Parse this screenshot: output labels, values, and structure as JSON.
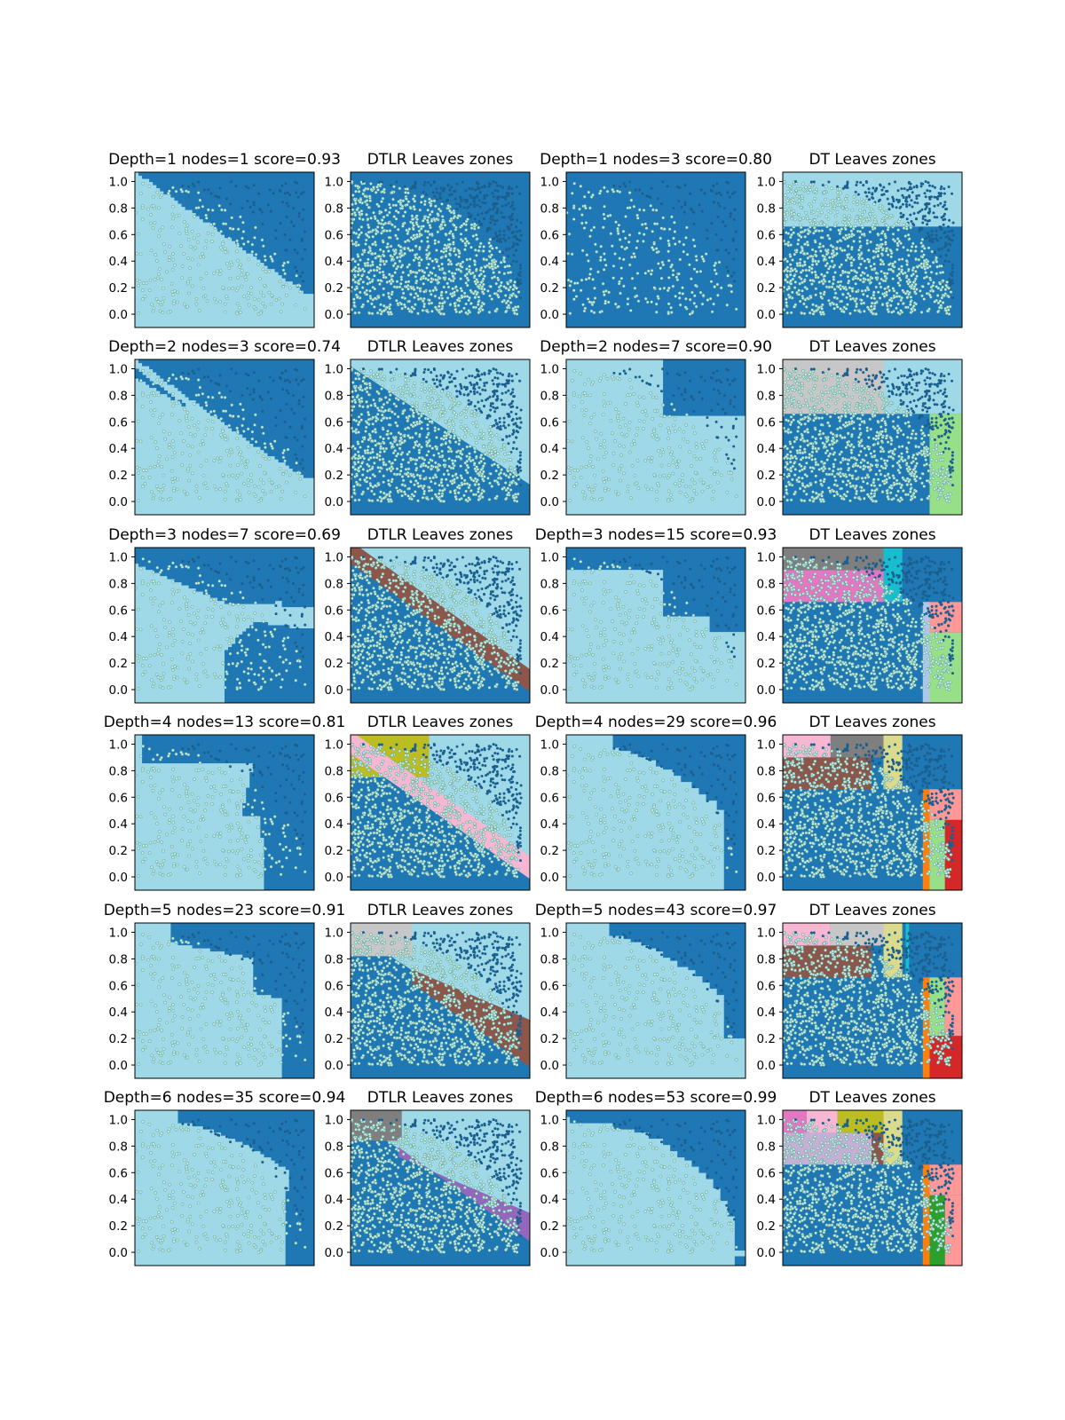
{
  "figure": {
    "rows": 6,
    "cols": 4,
    "xlim": [
      0,
      1.05
    ],
    "ylim": [
      -0.1,
      1.07
    ],
    "y_ticks": [
      0.0,
      0.2,
      0.4,
      0.6,
      0.8,
      1.0
    ],
    "y_tick_labels": [
      "0.0",
      "0.2",
      "0.4",
      "0.6",
      "0.8",
      "1.0"
    ],
    "colors": {
      "class_blue": "#1f77b4",
      "class_light": "#9fd8e6",
      "point_light_fill": "#c5ebd8",
      "point_light_edge": "#3f8a93",
      "point_dark": "#1b5f8f",
      "axis": "#000000"
    }
  },
  "chart_data": [
    {
      "type": "heatmap",
      "title": "Depth=1 nodes=1 score=0.93",
      "depth": 1,
      "nodes": 1,
      "score": 0.93,
      "model": "DTLR",
      "panel": "decision-boundary",
      "show_points": "sample"
    },
    {
      "type": "heatmap",
      "title": "DTLR Leaves zones",
      "depth": 1,
      "model": "DTLR",
      "panel": "leaves-zones",
      "show_points": "full",
      "zones": []
    },
    {
      "type": "heatmap",
      "title": "Depth=1 nodes=3 score=0.80",
      "depth": 1,
      "nodes": 3,
      "score": 0.8,
      "model": "DT",
      "panel": "decision-boundary",
      "show_points": "sample"
    },
    {
      "type": "heatmap",
      "title": "DT Leaves zones",
      "depth": 1,
      "model": "DT",
      "panel": "leaves-zones",
      "show_points": "full",
      "zones": [
        {
          "x": [
            0,
            1.05
          ],
          "y": [
            0.66,
            1.07
          ],
          "color": "#9fd8e6"
        }
      ]
    },
    {
      "type": "heatmap",
      "title": "Depth=2 nodes=3 score=0.74",
      "depth": 2,
      "nodes": 3,
      "score": 0.74,
      "model": "DTLR",
      "panel": "decision-boundary",
      "show_points": "sample"
    },
    {
      "type": "heatmap",
      "title": "DTLR Leaves zones",
      "depth": 2,
      "model": "DTLR",
      "panel": "leaves-zones",
      "show_points": "full",
      "zones": []
    },
    {
      "type": "heatmap",
      "title": "Depth=2 nodes=7 score=0.90",
      "depth": 2,
      "nodes": 7,
      "score": 0.9,
      "model": "DT",
      "panel": "decision-boundary",
      "show_points": "sample"
    },
    {
      "type": "heatmap",
      "title": "DT Leaves zones",
      "depth": 2,
      "model": "DT",
      "panel": "leaves-zones",
      "show_points": "full",
      "zones": [
        {
          "x": [
            0,
            0.59
          ],
          "y": [
            0.66,
            1.07
          ],
          "color": "#c7c7c7"
        },
        {
          "x": [
            0.59,
            1.05
          ],
          "y": [
            0.66,
            1.07
          ],
          "color": "#9fd8e6"
        },
        {
          "x": [
            0.86,
            1.05
          ],
          "y": [
            -0.1,
            0.66
          ],
          "color": "#98df8a"
        }
      ]
    },
    {
      "type": "heatmap",
      "title": "Depth=3 nodes=7 score=0.69",
      "depth": 3,
      "nodes": 7,
      "score": 0.69,
      "model": "DTLR",
      "panel": "decision-boundary",
      "show_points": "sample"
    },
    {
      "type": "heatmap",
      "title": "DTLR Leaves zones",
      "depth": 3,
      "model": "DTLR",
      "panel": "leaves-zones",
      "show_points": "full",
      "zones": []
    },
    {
      "type": "heatmap",
      "title": "Depth=3 nodes=15 score=0.93",
      "depth": 3,
      "nodes": 15,
      "score": 0.93,
      "model": "DT",
      "panel": "decision-boundary",
      "show_points": "sample"
    },
    {
      "type": "heatmap",
      "title": "DT Leaves zones",
      "depth": 3,
      "model": "DT",
      "panel": "leaves-zones",
      "show_points": "full",
      "zones": [
        {
          "x": [
            0,
            0.59
          ],
          "y": [
            0.9,
            1.07
          ],
          "color": "#7f7f7f"
        },
        {
          "x": [
            0,
            0.59
          ],
          "y": [
            0.66,
            0.9
          ],
          "color": "#e377c2"
        },
        {
          "x": [
            0.59,
            0.7
          ],
          "y": [
            0.66,
            1.07
          ],
          "color": "#17becf"
        },
        {
          "x": [
            0.84,
            1.05
          ],
          "y": [
            0.43,
            0.66
          ],
          "color": "#ff9896"
        },
        {
          "x": [
            0.84,
            1.05
          ],
          "y": [
            -0.1,
            0.43
          ],
          "color": "#98df8a"
        },
        {
          "x": [
            0.82,
            0.86
          ],
          "y": [
            -0.1,
            0.66
          ],
          "color": "#aec7e8"
        }
      ]
    },
    {
      "type": "heatmap",
      "title": "Depth=4 nodes=13 score=0.81",
      "depth": 4,
      "nodes": 13,
      "score": 0.81,
      "model": "DTLR",
      "panel": "decision-boundary",
      "show_points": "sample"
    },
    {
      "type": "heatmap",
      "title": "DTLR Leaves zones",
      "depth": 4,
      "model": "DTLR",
      "panel": "leaves-zones",
      "show_points": "full",
      "zones": []
    },
    {
      "type": "heatmap",
      "title": "Depth=4 nodes=29 score=0.96",
      "depth": 4,
      "nodes": 29,
      "score": 0.96,
      "model": "DT",
      "panel": "decision-boundary",
      "show_points": "sample"
    },
    {
      "type": "heatmap",
      "title": "DT Leaves zones",
      "depth": 4,
      "model": "DT",
      "panel": "leaves-zones",
      "show_points": "full",
      "zones": [
        {
          "x": [
            0,
            0.28
          ],
          "y": [
            0.9,
            1.07
          ],
          "color": "#f7b6d2"
        },
        {
          "x": [
            0.28,
            0.59
          ],
          "y": [
            0.9,
            1.07
          ],
          "color": "#7f7f7f"
        },
        {
          "x": [
            0,
            0.52
          ],
          "y": [
            0.66,
            0.9
          ],
          "color": "#8c564b"
        },
        {
          "x": [
            0.59,
            0.7
          ],
          "y": [
            0.66,
            1.07
          ],
          "color": "#dbdb8d"
        },
        {
          "x": [
            0.82,
            0.86
          ],
          "y": [
            -0.1,
            0.66
          ],
          "color": "#ff7f0e"
        },
        {
          "x": [
            0.86,
            0.95
          ],
          "y": [
            -0.1,
            0.43
          ],
          "color": "#98df8a"
        },
        {
          "x": [
            0.95,
            1.05
          ],
          "y": [
            -0.1,
            0.43
          ],
          "color": "#d62728"
        },
        {
          "x": [
            0.86,
            1.05
          ],
          "y": [
            0.43,
            0.66
          ],
          "color": "#ff9896"
        }
      ]
    },
    {
      "type": "heatmap",
      "title": "Depth=5 nodes=23 score=0.91",
      "depth": 5,
      "nodes": 23,
      "score": 0.91,
      "model": "DTLR",
      "panel": "decision-boundary",
      "show_points": "sample"
    },
    {
      "type": "heatmap",
      "title": "DTLR Leaves zones",
      "depth": 5,
      "model": "DTLR",
      "panel": "leaves-zones",
      "show_points": "full",
      "zones": []
    },
    {
      "type": "heatmap",
      "title": "Depth=5 nodes=43 score=0.97",
      "depth": 5,
      "nodes": 43,
      "score": 0.97,
      "model": "DT",
      "panel": "decision-boundary",
      "show_points": "sample"
    },
    {
      "type": "heatmap",
      "title": "DT Leaves zones",
      "depth": 5,
      "model": "DT",
      "panel": "leaves-zones",
      "show_points": "full",
      "zones": [
        {
          "x": [
            0,
            0.28
          ],
          "y": [
            0.9,
            1.07
          ],
          "color": "#f7b6d2"
        },
        {
          "x": [
            0.28,
            0.59
          ],
          "y": [
            0.9,
            1.07
          ],
          "color": "#c7c7c7"
        },
        {
          "x": [
            0,
            0.52
          ],
          "y": [
            0.66,
            0.9
          ],
          "color": "#8c564b"
        },
        {
          "x": [
            0.59,
            0.7
          ],
          "y": [
            0.66,
            1.07
          ],
          "color": "#dbdb8d"
        },
        {
          "x": [
            0.72,
            0.74
          ],
          "y": [
            0.66,
            1.07
          ],
          "color": "#17becf"
        },
        {
          "x": [
            0.82,
            0.86
          ],
          "y": [
            -0.1,
            0.66
          ],
          "color": "#ff7f0e"
        },
        {
          "x": [
            0.86,
            0.95
          ],
          "y": [
            0.22,
            0.66
          ],
          "color": "#98df8a"
        },
        {
          "x": [
            0.86,
            1.05
          ],
          "y": [
            -0.1,
            0.22
          ],
          "color": "#d62728"
        },
        {
          "x": [
            0.95,
            1.05
          ],
          "y": [
            0.22,
            0.66
          ],
          "color": "#ff9896"
        }
      ]
    },
    {
      "type": "heatmap",
      "title": "Depth=6 nodes=35 score=0.94",
      "depth": 6,
      "nodes": 35,
      "score": 0.94,
      "model": "DTLR",
      "panel": "decision-boundary",
      "show_points": "sample"
    },
    {
      "type": "heatmap",
      "title": "DTLR Leaves zones",
      "depth": 6,
      "model": "DTLR",
      "panel": "leaves-zones",
      "show_points": "full",
      "zones": []
    },
    {
      "type": "heatmap",
      "title": "Depth=6 nodes=53 score=0.99",
      "depth": 6,
      "nodes": 53,
      "score": 0.99,
      "model": "DT",
      "panel": "decision-boundary",
      "show_points": "sample"
    },
    {
      "type": "heatmap",
      "title": "DT Leaves zones",
      "depth": 6,
      "model": "DT",
      "panel": "leaves-zones",
      "show_points": "full",
      "zones": [
        {
          "x": [
            0,
            0.14
          ],
          "y": [
            0.9,
            1.07
          ],
          "color": "#e377c2"
        },
        {
          "x": [
            0.14,
            0.32
          ],
          "y": [
            0.9,
            1.07
          ],
          "color": "#f7b6d2"
        },
        {
          "x": [
            0,
            0.52
          ],
          "y": [
            0.66,
            0.9
          ],
          "color": "#c5b0d5"
        },
        {
          "x": [
            0.32,
            0.59
          ],
          "y": [
            0.9,
            1.07
          ],
          "color": "#bcbd22"
        },
        {
          "x": [
            0.52,
            0.59
          ],
          "y": [
            0.66,
            0.9
          ],
          "color": "#8c564b"
        },
        {
          "x": [
            0.59,
            0.7
          ],
          "y": [
            0.66,
            1.07
          ],
          "color": "#dbdb8d"
        },
        {
          "x": [
            0.82,
            0.86
          ],
          "y": [
            -0.1,
            0.66
          ],
          "color": "#ff7f0e"
        },
        {
          "x": [
            0.86,
            0.95
          ],
          "y": [
            -0.1,
            0.43
          ],
          "color": "#2ca02c"
        },
        {
          "x": [
            0.86,
            1.05
          ],
          "y": [
            0.43,
            0.66
          ],
          "color": "#ff9896"
        },
        {
          "x": [
            0.95,
            1.05
          ],
          "y": [
            -0.1,
            0.43
          ],
          "color": "#ff9896"
        }
      ]
    }
  ]
}
